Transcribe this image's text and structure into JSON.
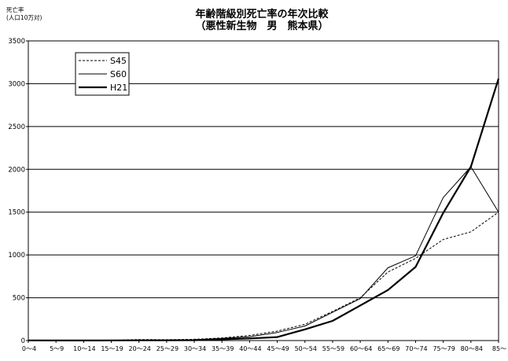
{
  "chart_data": {
    "type": "line",
    "title": "年齢階級別死亡率の年次比較",
    "subtitle": "（悪性新生物　男　熊本県）",
    "ylabel_line1": "死亡率",
    "ylabel_line2": "(人口10万対)",
    "xlabel": "",
    "categories": [
      "0～4",
      "5～9",
      "10～14",
      "15～19",
      "20～24",
      "25～29",
      "30～34",
      "35～39",
      "40～44",
      "45～49",
      "50～54",
      "55～59",
      "60～64",
      "65～69",
      "70～74",
      "75～79",
      "80～84",
      "85～"
    ],
    "ylim": [
      0,
      3500
    ],
    "yticks": [
      0,
      500,
      1000,
      1500,
      2000,
      2500,
      3000,
      3500
    ],
    "grid": "horizontal",
    "legend_position": "top-left",
    "series": [
      {
        "name": "S45",
        "style": "dashed",
        "color": "#000000",
        "values": [
          3,
          3,
          2,
          3,
          12,
          10,
          15,
          30,
          60,
          110,
          190,
          340,
          500,
          800,
          960,
          1180,
          1270,
          1500
        ]
      },
      {
        "name": "S60",
        "style": "thin",
        "color": "#000000",
        "values": [
          3,
          2,
          2,
          3,
          5,
          5,
          10,
          25,
          45,
          95,
          170,
          330,
          490,
          850,
          990,
          1670,
          2030,
          1500
        ]
      },
      {
        "name": "H21",
        "style": "thick",
        "color": "#000000",
        "values": [
          2,
          1,
          1,
          2,
          3,
          3,
          5,
          15,
          25,
          40,
          130,
          230,
          410,
          590,
          860,
          1490,
          2030,
          3060
        ]
      }
    ]
  }
}
